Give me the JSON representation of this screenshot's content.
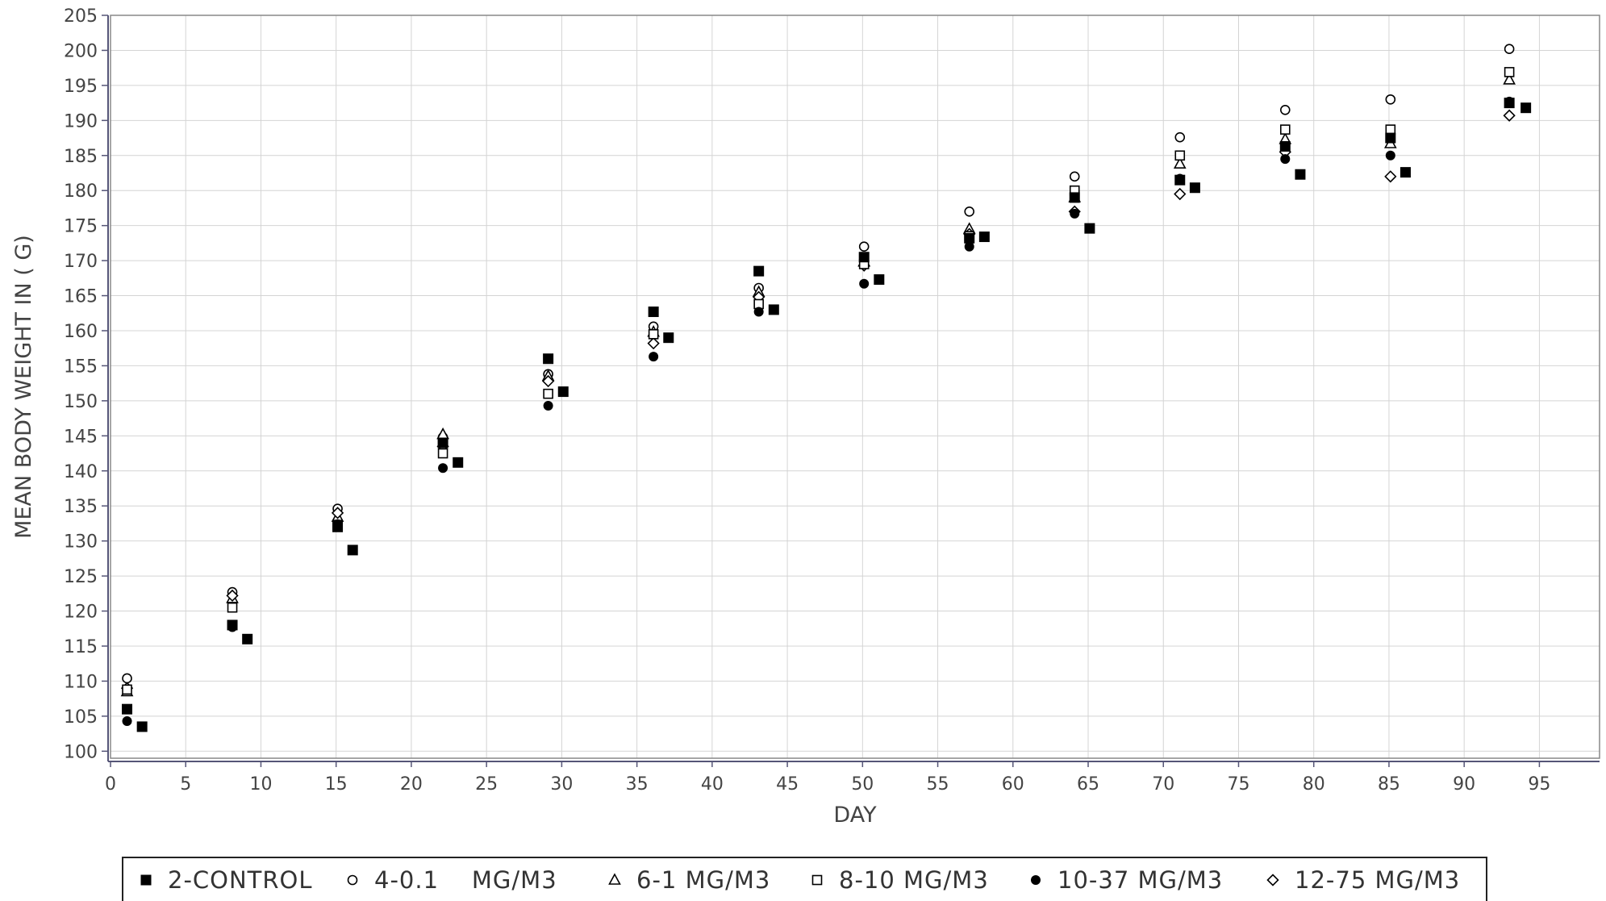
{
  "chart_data": {
    "type": "scatter",
    "title": "",
    "xlabel": "DAY",
    "ylabel": "MEAN BODY WEIGHT IN ( G)",
    "xlim": [
      0,
      99
    ],
    "ylim": [
      99,
      205
    ],
    "xticks": [
      0,
      5,
      10,
      15,
      20,
      25,
      30,
      35,
      40,
      45,
      50,
      55,
      60,
      65,
      70,
      75,
      80,
      85,
      90,
      95
    ],
    "yticks": [
      100,
      105,
      110,
      115,
      120,
      125,
      130,
      135,
      140,
      145,
      150,
      155,
      160,
      165,
      170,
      175,
      180,
      185,
      190,
      195,
      200,
      205
    ],
    "grid": true,
    "legend_position": "bottom",
    "series": [
      {
        "name": "2-CONTROL",
        "marker": "square-filled",
        "points": [
          [
            1.1,
            106
          ],
          [
            2.1,
            103.5
          ],
          [
            8.1,
            118
          ],
          [
            9.1,
            116
          ],
          [
            15.1,
            132
          ],
          [
            16.1,
            128.7
          ],
          [
            22.1,
            144
          ],
          [
            23.1,
            141.2
          ],
          [
            29.1,
            156
          ],
          [
            30.1,
            151.3
          ],
          [
            36.1,
            162.7
          ],
          [
            37.1,
            159
          ],
          [
            43.1,
            168.5
          ],
          [
            44.1,
            163
          ],
          [
            50.1,
            170.5
          ],
          [
            51.1,
            167.3
          ],
          [
            57.1,
            173.2
          ],
          [
            58.1,
            173.4
          ],
          [
            64.1,
            179
          ],
          [
            65.1,
            174.6
          ],
          [
            71.1,
            181.5
          ],
          [
            72.1,
            180.4
          ],
          [
            78.1,
            186.3
          ],
          [
            79.1,
            182.3
          ],
          [
            85.1,
            187.5
          ],
          [
            86.1,
            182.6
          ],
          [
            93.0,
            192.5
          ],
          [
            94.1,
            191.8
          ]
        ]
      },
      {
        "name": "4-0.1    MG/M3",
        "marker": "circle-open",
        "points": [
          [
            1.1,
            110.4
          ],
          [
            8.1,
            122.7
          ],
          [
            15.1,
            134.6
          ],
          [
            22.1,
            144.8
          ],
          [
            29.1,
            153.8
          ],
          [
            36.1,
            160.6
          ],
          [
            43.1,
            166.1
          ],
          [
            50.1,
            172
          ],
          [
            57.1,
            177
          ],
          [
            64.1,
            182
          ],
          [
            71.1,
            187.6
          ],
          [
            78.1,
            191.5
          ],
          [
            85.1,
            193
          ],
          [
            93.0,
            200.2
          ]
        ]
      },
      {
        "name": "6-1 MG/M3",
        "marker": "triangle-open",
        "points": [
          [
            1.1,
            108.5
          ],
          [
            8.1,
            121.8
          ],
          [
            15.1,
            133.4
          ],
          [
            22.1,
            145.2
          ],
          [
            29.1,
            153.5
          ],
          [
            36.1,
            159.8
          ],
          [
            43.1,
            165.5
          ],
          [
            50.1,
            169.8
          ],
          [
            57.1,
            174.5
          ],
          [
            64.1,
            179
          ],
          [
            71.1,
            183.8
          ],
          [
            78.1,
            187.3
          ],
          [
            85.1,
            186.7
          ],
          [
            93.0,
            195.8
          ]
        ]
      },
      {
        "name": "8-10 MG/M3",
        "marker": "square-open",
        "points": [
          [
            1.1,
            108.8
          ],
          [
            8.1,
            120.5
          ],
          [
            15.1,
            132.3
          ],
          [
            22.1,
            142.5
          ],
          [
            29.1,
            151
          ],
          [
            36.1,
            159.5
          ],
          [
            43.1,
            163.8
          ],
          [
            50.1,
            169.5
          ],
          [
            57.1,
            173.5
          ],
          [
            64.1,
            180
          ],
          [
            71.1,
            185
          ],
          [
            78.1,
            188.7
          ],
          [
            85.1,
            188.7
          ],
          [
            93.0,
            196.9
          ]
        ]
      },
      {
        "name": "10-37 MG/M3",
        "marker": "circle-filled",
        "points": [
          [
            1.1,
            104.3
          ],
          [
            8.1,
            117.7
          ],
          [
            15.1,
            132.4
          ],
          [
            22.1,
            140.4
          ],
          [
            29.1,
            149.3
          ],
          [
            36.1,
            156.3
          ],
          [
            43.1,
            162.7
          ],
          [
            50.1,
            166.7
          ],
          [
            57.1,
            172
          ],
          [
            64.1,
            176.7
          ],
          [
            71.1,
            181.7
          ],
          [
            78.1,
            184.5
          ],
          [
            85.1,
            185
          ],
          [
            93.0,
            192.7
          ]
        ]
      },
      {
        "name": "12-75 MG/M3",
        "marker": "diamond-open",
        "points": [
          [
            1.1,
            109
          ],
          [
            8.1,
            122.2
          ],
          [
            15.1,
            134
          ],
          [
            22.1,
            143.5
          ],
          [
            29.1,
            152.8
          ],
          [
            36.1,
            158.2
          ],
          [
            43.1,
            164.8
          ],
          [
            50.1,
            169.3
          ],
          [
            57.1,
            173.8
          ],
          [
            64.1,
            177
          ],
          [
            71.1,
            179.5
          ],
          [
            78.1,
            185.5
          ],
          [
            85.1,
            182
          ],
          [
            93.0,
            190.7
          ]
        ]
      }
    ]
  }
}
